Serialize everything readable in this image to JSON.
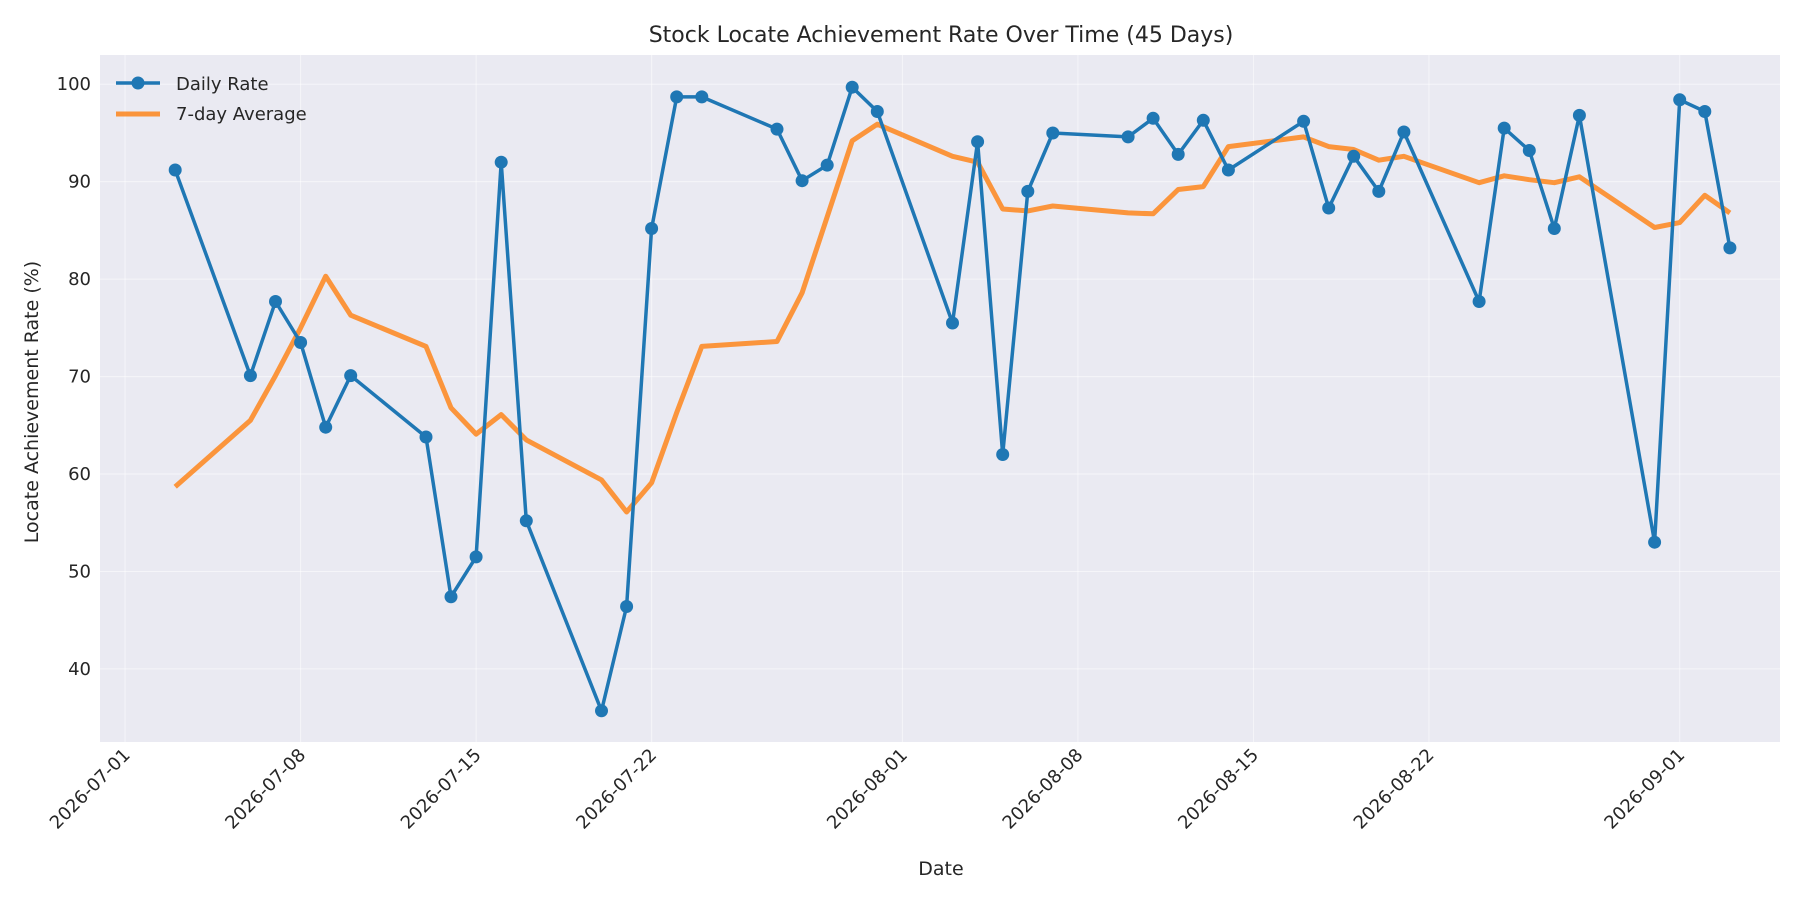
{
  "chart_data": {
    "type": "line",
    "title": "Stock Locate Achievement Rate Over Time (45 Days)",
    "xlabel": "Date",
    "ylabel": "Locate Achievement Rate (%)",
    "xlim": [
      "2026-06-30",
      "2026-09-05"
    ],
    "ylim": [
      32.5,
      103
    ],
    "x_ticks": [
      "2026-07-01",
      "2026-07-08",
      "2026-07-15",
      "2026-07-22",
      "2026-08-01",
      "2026-08-08",
      "2026-08-15",
      "2026-08-22",
      "2026-09-01"
    ],
    "y_ticks": [
      40,
      50,
      60,
      70,
      80,
      90,
      100
    ],
    "grid": true,
    "legend": "top-left",
    "x": [
      "2026-07-03",
      "2026-07-06",
      "2026-07-07",
      "2026-07-08",
      "2026-07-09",
      "2026-07-10",
      "2026-07-13",
      "2026-07-14",
      "2026-07-15",
      "2026-07-16",
      "2026-07-17",
      "2026-07-20",
      "2026-07-21",
      "2026-07-22",
      "2026-07-23",
      "2026-07-24",
      "2026-07-27",
      "2026-07-28",
      "2026-07-29",
      "2026-07-30",
      "2026-07-31",
      "2026-08-03",
      "2026-08-04",
      "2026-08-05",
      "2026-08-06",
      "2026-08-07",
      "2026-08-10",
      "2026-08-11",
      "2026-08-12",
      "2026-08-13",
      "2026-08-14",
      "2026-08-17",
      "2026-08-18",
      "2026-08-19",
      "2026-08-20",
      "2026-08-21",
      "2026-08-24",
      "2026-08-25",
      "2026-08-26",
      "2026-08-27",
      "2026-08-28",
      "2026-08-31",
      "2026-09-01",
      "2026-09-02",
      "2026-09-03"
    ],
    "series": [
      {
        "name": "Daily Rate",
        "color": "#1f77b4",
        "values": [
          91.2,
          70.1,
          77.7,
          73.5,
          64.8,
          70.1,
          63.8,
          47.4,
          51.5,
          92.0,
          55.2,
          35.7,
          46.4,
          85.2,
          98.7,
          98.7,
          95.4,
          90.1,
          91.7,
          99.7,
          97.2,
          75.5,
          94.1,
          62.0,
          89.0,
          95.0,
          94.6,
          96.5,
          92.8,
          96.3,
          91.2,
          96.2,
          87.3,
          92.6,
          89.0,
          95.1,
          77.7,
          95.5,
          93.2,
          85.2,
          96.8,
          53.0,
          98.4,
          97.2,
          83.2
        ]
      },
      {
        "name": "7-day Average",
        "color": "#ff7f0e",
        "values": [
          58.7,
          65.5,
          70.1,
          75.0,
          80.3,
          76.3,
          73.1,
          66.8,
          64.1,
          66.1,
          63.5,
          59.4,
          56.1,
          59.1,
          66.3,
          73.1,
          73.6,
          78.6,
          86.4,
          94.2,
          95.9,
          92.6,
          92.0,
          87.2,
          87.0,
          87.5,
          86.8,
          86.7,
          89.2,
          89.5,
          93.6,
          94.6,
          93.6,
          93.3,
          92.2,
          92.6,
          89.9,
          90.6,
          90.2,
          89.9,
          90.5,
          85.3,
          85.8,
          88.6,
          86.8
        ]
      }
    ]
  }
}
